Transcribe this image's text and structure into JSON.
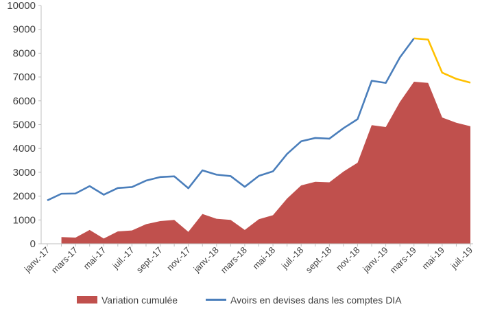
{
  "chart_data": {
    "type": "area",
    "categories": [
      "janv.-17",
      "févr.-17",
      "mars-17",
      "avr.-17",
      "mai-17",
      "juin-17",
      "juil.-17",
      "août-17",
      "sept.-17",
      "oct.-17",
      "nov.-17",
      "déc.-17",
      "janv.-18",
      "févr.-18",
      "mars-18",
      "avr.-18",
      "mai-18",
      "juin-18",
      "juil.-18",
      "août-18",
      "sept.-18",
      "oct.-18",
      "nov.-18",
      "déc.-18",
      "janv.-19",
      "févr.-19",
      "mars-19",
      "avr.-19",
      "mai-19",
      "juin-19",
      "juil.-19"
    ],
    "tick_labels": [
      "janv.-17",
      "mars-17",
      "mai-17",
      "juil.-17",
      "sept.-17",
      "nov.-17",
      "janv.-18",
      "mars-18",
      "mai-18",
      "juil.-18",
      "sept.-18",
      "nov.-18",
      "janv.-19",
      "mars-19",
      "mai-19",
      "juil.-19"
    ],
    "series": [
      {
        "name": "Variation cumulée",
        "kind": "area",
        "color": "#C0504D",
        "values": [
          null,
          280,
          260,
          580,
          220,
          520,
          560,
          820,
          950,
          1000,
          500,
          1250,
          1050,
          1000,
          580,
          1030,
          1200,
          1900,
          2450,
          2600,
          2580,
          3030,
          3400,
          4980,
          4900,
          5950,
          6800,
          6750,
          5300,
          5080,
          4930
        ]
      },
      {
        "name": "Avoirs en devises dans les comptes DIA",
        "kind": "line",
        "color": "#4A7EBB",
        "highlight_color": "#FFC000",
        "highlight_from_index": 26,
        "values": [
          1820,
          2100,
          2110,
          2420,
          2060,
          2340,
          2380,
          2650,
          2800,
          2830,
          2330,
          3080,
          2900,
          2840,
          2390,
          2850,
          3040,
          3770,
          4300,
          4440,
          4410,
          4850,
          5230,
          6840,
          6750,
          7820,
          8620,
          8570,
          7180,
          6920,
          6760
        ]
      }
    ],
    "yticks": [
      0,
      1000,
      2000,
      3000,
      4000,
      5000,
      6000,
      7000,
      8000,
      9000,
      10000
    ],
    "ylim": [
      0,
      10000
    ],
    "xlabel": "",
    "ylabel": "",
    "title": "",
    "grid": false,
    "legend_position": "bottom"
  },
  "legend": {
    "area_label": "Variation cumulée",
    "line_label": "Avoirs en devises dans les comptes DIA"
  }
}
